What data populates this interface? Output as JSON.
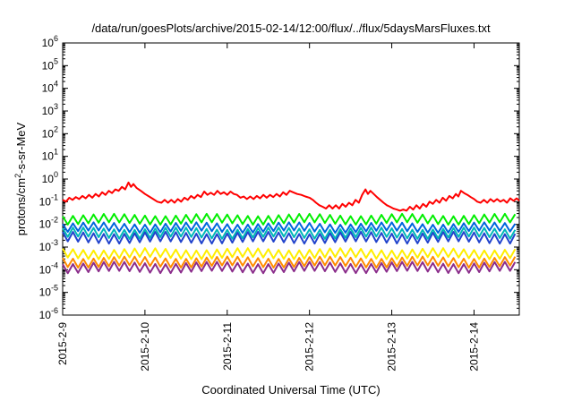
{
  "chart_data": {
    "type": "line",
    "title": "/data/run/goesPlots/archive/2015-02-14/12:00/flux/../flux/5daysMarsFluxes.txt",
    "xlabel": "Coordinated Universal Time (UTC)",
    "ylabel_prefix": "protons/cm",
    "ylabel_sup": "2",
    "ylabel_suffix": "-s-sr-MeV",
    "y_scale": "log",
    "ylim_exp": [
      -6,
      6
    ],
    "y_ticks": [
      {
        "base": "10",
        "exp": "-6",
        "value_exp": -6
      },
      {
        "base": "10",
        "exp": "-5",
        "value_exp": -5
      },
      {
        "base": "10",
        "exp": "-4",
        "value_exp": -4
      },
      {
        "base": "10",
        "exp": "-3",
        "value_exp": -3
      },
      {
        "base": "10",
        "exp": "-2",
        "value_exp": -2
      },
      {
        "base": "10",
        "exp": "-1",
        "value_exp": -1
      },
      {
        "base": "10",
        "exp": "0",
        "value_exp": 0
      },
      {
        "base": "10",
        "exp": "1",
        "value_exp": 1
      },
      {
        "base": "10",
        "exp": "2",
        "value_exp": 2
      },
      {
        "base": "10",
        "exp": "3",
        "value_exp": 3
      },
      {
        "base": "10",
        "exp": "4",
        "value_exp": 4
      },
      {
        "base": "10",
        "exp": "5",
        "value_exp": 5
      },
      {
        "base": "10",
        "exp": "6",
        "value_exp": 6
      }
    ],
    "x_tick_labels": [
      "2015-2-9",
      "2015-2-10",
      "2015-2-11",
      "2015-2-12",
      "2015-2-13",
      "2015-2-14"
    ],
    "x_tick_days": [
      9,
      10,
      11,
      12,
      13,
      14
    ],
    "xlim_days": [
      9,
      14.55
    ],
    "grid": false,
    "series": [
      {
        "color": "#ff0000",
        "points": [
          [
            9.0,
            0.12
          ],
          [
            9.04,
            0.1
          ],
          [
            9.08,
            0.15
          ],
          [
            9.12,
            0.12
          ],
          [
            9.16,
            0.16
          ],
          [
            9.2,
            0.13
          ],
          [
            9.24,
            0.18
          ],
          [
            9.28,
            0.14
          ],
          [
            9.32,
            0.2
          ],
          [
            9.36,
            0.15
          ],
          [
            9.4,
            0.22
          ],
          [
            9.44,
            0.17
          ],
          [
            9.48,
            0.26
          ],
          [
            9.52,
            0.2
          ],
          [
            9.56,
            0.3
          ],
          [
            9.6,
            0.24
          ],
          [
            9.64,
            0.35
          ],
          [
            9.68,
            0.3
          ],
          [
            9.72,
            0.45
          ],
          [
            9.76,
            0.35
          ],
          [
            9.8,
            0.7
          ],
          [
            9.83,
            0.45
          ],
          [
            9.86,
            0.6
          ],
          [
            9.9,
            0.4
          ],
          [
            9.95,
            0.3
          ],
          [
            10.0,
            0.22
          ],
          [
            10.05,
            0.17
          ],
          [
            10.1,
            0.13
          ],
          [
            10.15,
            0.1
          ],
          [
            10.2,
            0.09
          ],
          [
            10.24,
            0.12
          ],
          [
            10.28,
            0.09
          ],
          [
            10.32,
            0.12
          ],
          [
            10.36,
            0.09
          ],
          [
            10.4,
            0.13
          ],
          [
            10.44,
            0.1
          ],
          [
            10.48,
            0.15
          ],
          [
            10.52,
            0.12
          ],
          [
            10.56,
            0.18
          ],
          [
            10.6,
            0.14
          ],
          [
            10.64,
            0.2
          ],
          [
            10.68,
            0.16
          ],
          [
            10.72,
            0.28
          ],
          [
            10.76,
            0.2
          ],
          [
            10.8,
            0.25
          ],
          [
            10.84,
            0.2
          ],
          [
            10.88,
            0.3
          ],
          [
            10.92,
            0.22
          ],
          [
            10.96,
            0.26
          ],
          [
            11.0,
            0.2
          ],
          [
            11.04,
            0.28
          ],
          [
            11.08,
            0.22
          ],
          [
            11.12,
            0.2
          ],
          [
            11.16,
            0.15
          ],
          [
            11.2,
            0.17
          ],
          [
            11.24,
            0.13
          ],
          [
            11.28,
            0.17
          ],
          [
            11.32,
            0.13
          ],
          [
            11.36,
            0.18
          ],
          [
            11.4,
            0.14
          ],
          [
            11.44,
            0.2
          ],
          [
            11.48,
            0.15
          ],
          [
            11.52,
            0.2
          ],
          [
            11.56,
            0.16
          ],
          [
            11.6,
            0.22
          ],
          [
            11.64,
            0.17
          ],
          [
            11.68,
            0.26
          ],
          [
            11.72,
            0.2
          ],
          [
            11.76,
            0.3
          ],
          [
            11.8,
            0.26
          ],
          [
            11.85,
            0.22
          ],
          [
            11.9,
            0.2
          ],
          [
            11.95,
            0.17
          ],
          [
            12.0,
            0.15
          ],
          [
            12.04,
            0.12
          ],
          [
            12.08,
            0.09
          ],
          [
            12.12,
            0.07
          ],
          [
            12.16,
            0.06
          ],
          [
            12.2,
            0.05
          ],
          [
            12.24,
            0.07
          ],
          [
            12.28,
            0.05
          ],
          [
            12.32,
            0.07
          ],
          [
            12.36,
            0.05
          ],
          [
            12.4,
            0.08
          ],
          [
            12.44,
            0.06
          ],
          [
            12.48,
            0.09
          ],
          [
            12.52,
            0.07
          ],
          [
            12.56,
            0.12
          ],
          [
            12.6,
            0.09
          ],
          [
            12.64,
            0.2
          ],
          [
            12.68,
            0.35
          ],
          [
            12.71,
            0.22
          ],
          [
            12.74,
            0.3
          ],
          [
            12.78,
            0.22
          ],
          [
            12.82,
            0.16
          ],
          [
            12.86,
            0.12
          ],
          [
            12.9,
            0.09
          ],
          [
            12.94,
            0.07
          ],
          [
            12.98,
            0.06
          ],
          [
            13.02,
            0.05
          ],
          [
            13.06,
            0.045
          ],
          [
            13.1,
            0.04
          ],
          [
            13.14,
            0.045
          ],
          [
            13.18,
            0.04
          ],
          [
            13.22,
            0.06
          ],
          [
            13.26,
            0.045
          ],
          [
            13.3,
            0.07
          ],
          [
            13.34,
            0.05
          ],
          [
            13.38,
            0.08
          ],
          [
            13.42,
            0.06
          ],
          [
            13.46,
            0.1
          ],
          [
            13.5,
            0.08
          ],
          [
            13.54,
            0.12
          ],
          [
            13.58,
            0.09
          ],
          [
            13.62,
            0.15
          ],
          [
            13.66,
            0.11
          ],
          [
            13.7,
            0.18
          ],
          [
            13.74,
            0.14
          ],
          [
            13.78,
            0.22
          ],
          [
            13.81,
            0.17
          ],
          [
            13.84,
            0.3
          ],
          [
            13.88,
            0.24
          ],
          [
            13.92,
            0.2
          ],
          [
            13.96,
            0.16
          ],
          [
            14.0,
            0.13
          ],
          [
            14.04,
            0.1
          ],
          [
            14.08,
            0.09
          ],
          [
            14.12,
            0.12
          ],
          [
            14.16,
            0.09
          ],
          [
            14.2,
            0.13
          ],
          [
            14.24,
            0.1
          ],
          [
            14.28,
            0.13
          ],
          [
            14.32,
            0.1
          ],
          [
            14.36,
            0.12
          ],
          [
            14.4,
            0.09
          ],
          [
            14.44,
            0.14
          ],
          [
            14.48,
            0.11
          ],
          [
            14.52,
            0.14
          ],
          [
            14.55,
            0.11
          ]
        ]
      },
      {
        "color": "#00ee00",
        "base": 0.0125,
        "amp": 0.016,
        "lo": 0.011,
        "hi": 0.026
      },
      {
        "color": "#0066dd",
        "base": 0.0052,
        "amp": 0.006,
        "lo": 0.0048,
        "hi": 0.011
      },
      {
        "color": "#00b8b8",
        "base": 0.0028,
        "amp": 0.0035,
        "lo": 0.0026,
        "hi": 0.0065
      },
      {
        "color": "#2244cc",
        "base": 0.0018,
        "amp": 0.0024,
        "lo": 0.0016,
        "hi": 0.0042
      },
      {
        "color": "#ffee00",
        "base": 0.00036,
        "amp": 0.00045,
        "lo": 0.00033,
        "hi": 0.0008
      },
      {
        "color": "#ff8c00",
        "base": 0.00015,
        "amp": 0.0002,
        "lo": 0.00014,
        "hi": 0.00034
      },
      {
        "color": "#8b2d8b",
        "base": 8.5e-05,
        "amp": 0.00012,
        "lo": 8e-05,
        "hi": 0.0002
      }
    ],
    "sawtooth_period_days": 0.125
  }
}
